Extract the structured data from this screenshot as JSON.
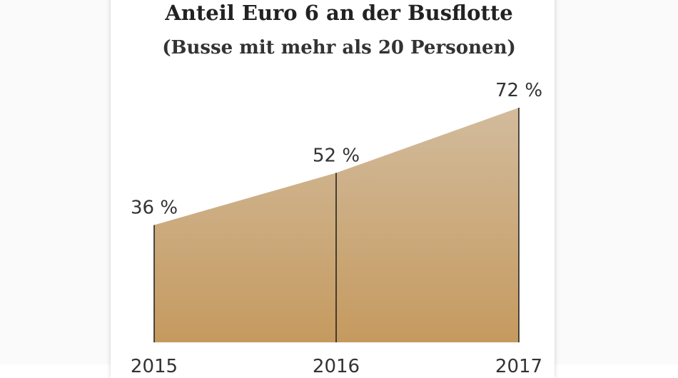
{
  "chart_data": {
    "type": "area",
    "title": "Anteil Euro 6 an der Busflotte",
    "subtitle": "(Busse mit mehr als 20 Personen)",
    "categories": [
      "2015",
      "2016",
      "2017"
    ],
    "values": [
      36,
      52,
      72
    ],
    "value_labels": [
      "36 %",
      "52 %",
      "72 %"
    ],
    "ylim": [
      0,
      100
    ],
    "grid": false,
    "legend": "none",
    "colors": {
      "fill_top": "#d2bb9c",
      "fill_bottom": "#c59a5f",
      "line": "#1a1a1a"
    }
  }
}
